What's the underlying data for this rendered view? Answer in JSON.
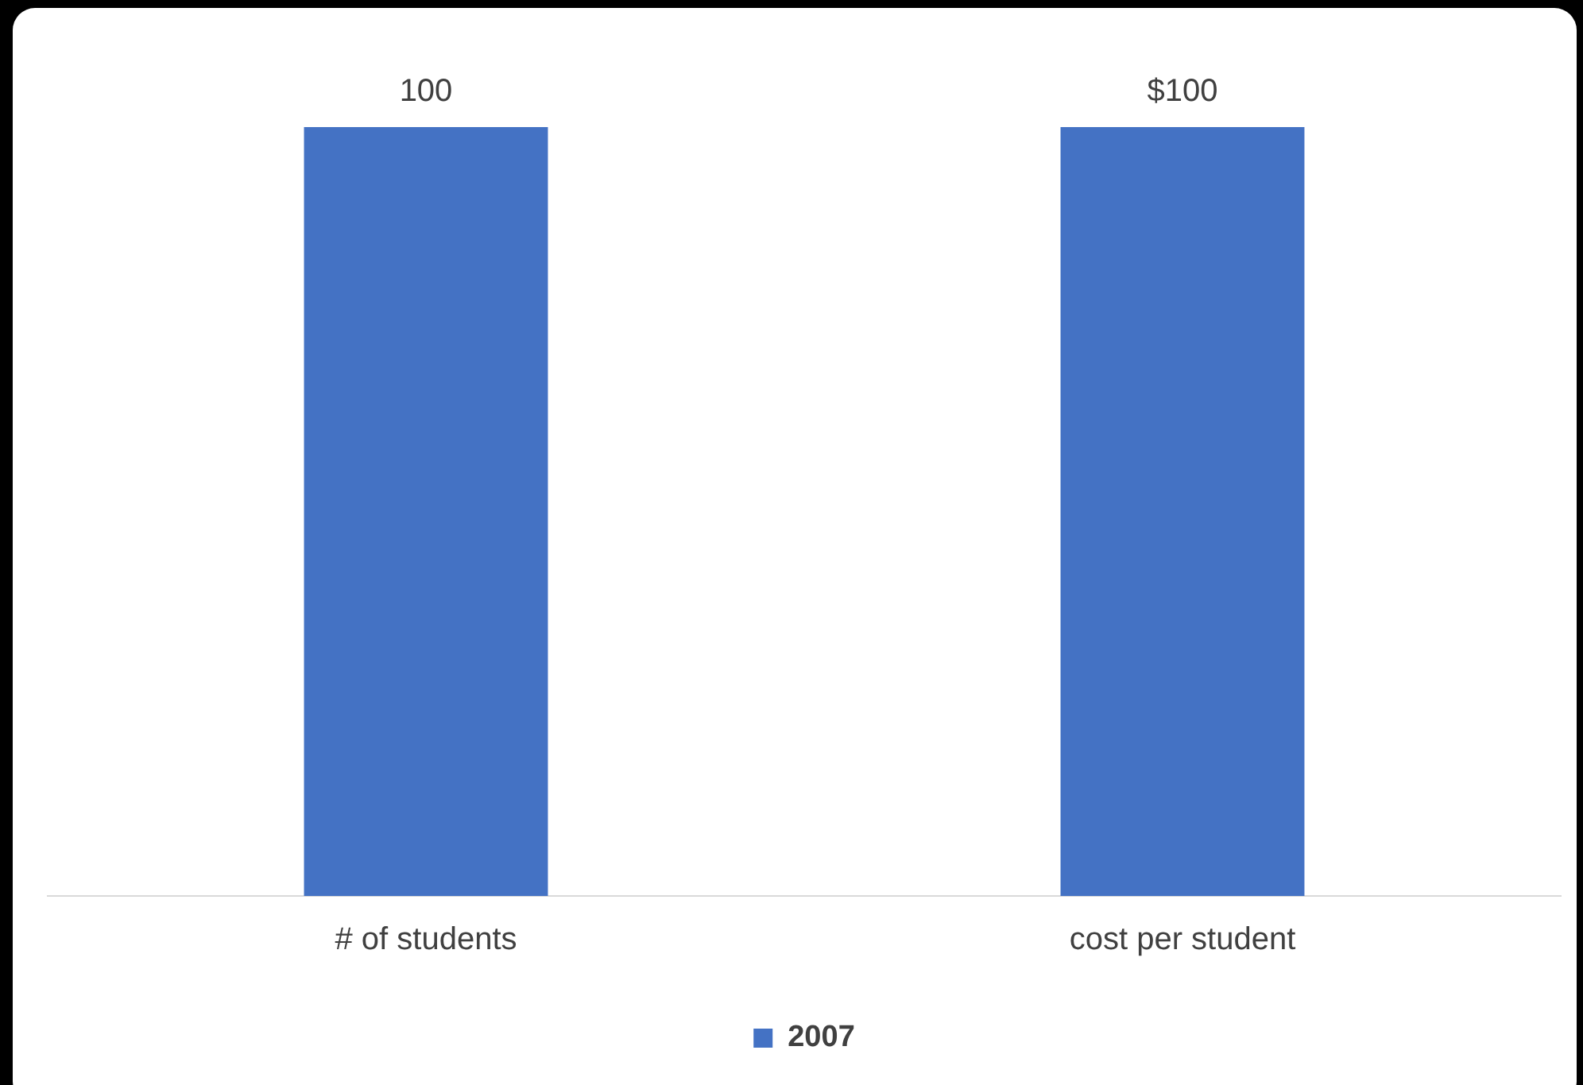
{
  "chart_data": {
    "type": "bar",
    "categories": [
      "# of students",
      "cost per student"
    ],
    "series": [
      {
        "name": "2007",
        "color": "#4472c4",
        "values": [
          100,
          100
        ],
        "value_labels": [
          "100",
          "$100"
        ]
      }
    ],
    "legend": "bottom",
    "grid": false
  }
}
